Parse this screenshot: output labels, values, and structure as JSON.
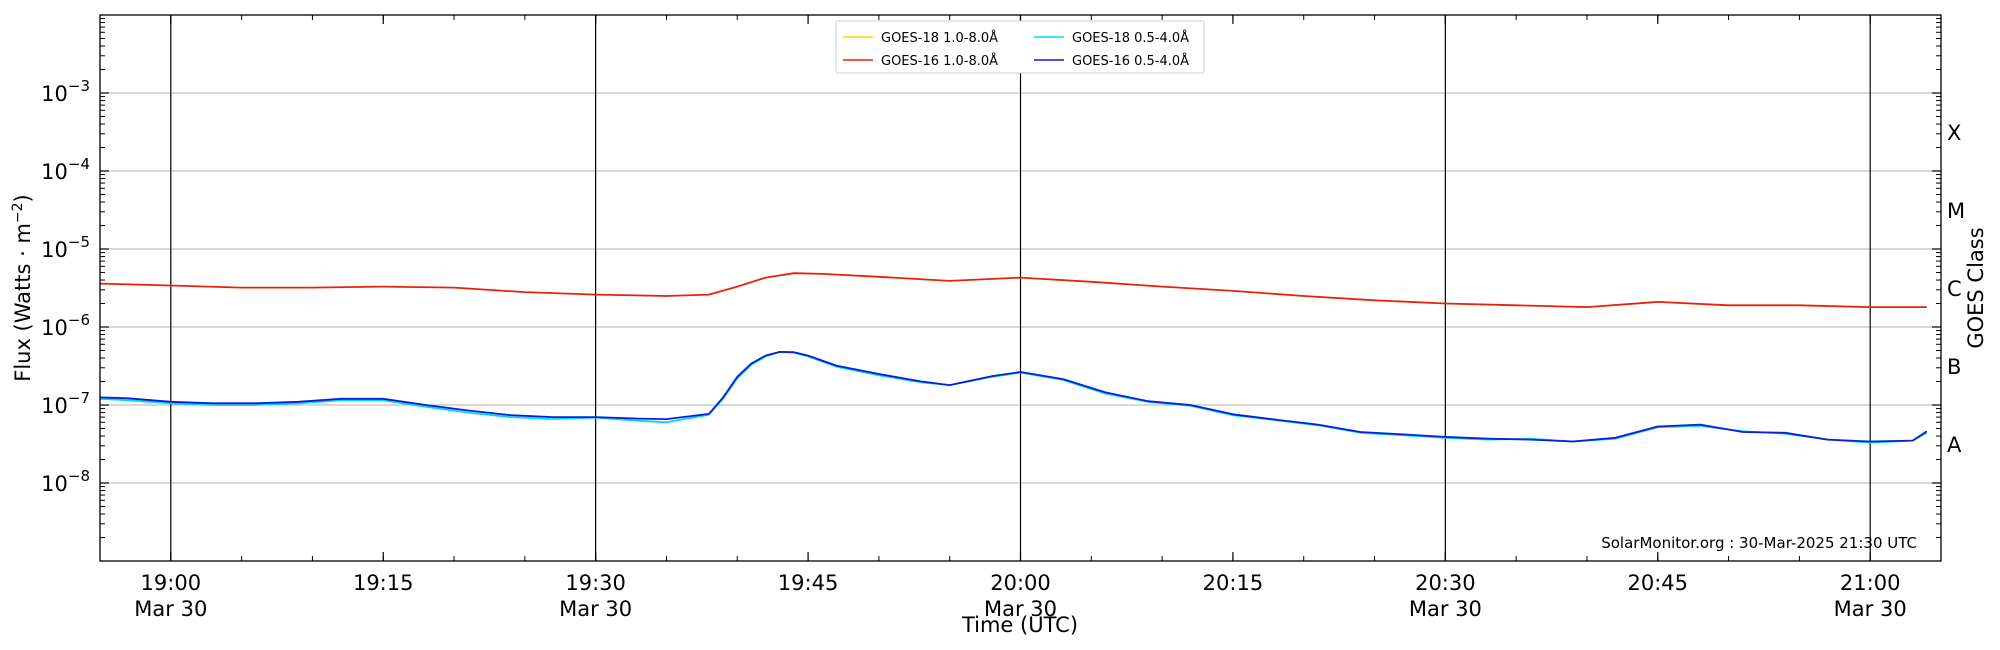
{
  "chart_data": {
    "type": "line",
    "xlabel": "Time (UTC)",
    "ylabel_main": "Flux (Watts · m",
    "ylabel_exp": "−2",
    "ylabel_close": ")",
    "right_label": "GOES Class",
    "credit": "SolarMonitor.org : 30-Mar-2025 21:30 UTC",
    "xlim": [
      "18:55",
      "21:05"
    ],
    "ylim_log10": [
      -9,
      -2
    ],
    "y_scale": "log",
    "grid": "horizontal",
    "legend_position": "top-center",
    "x_ticks": [
      {
        "time": "19:00",
        "label": "19:00",
        "date": "Mar 30",
        "major": true
      },
      {
        "time": "19:15",
        "label": "19:15",
        "date": "",
        "major": false
      },
      {
        "time": "19:30",
        "label": "19:30",
        "date": "Mar 30",
        "major": true
      },
      {
        "time": "19:45",
        "label": "19:45",
        "date": "",
        "major": false
      },
      {
        "time": "20:00",
        "label": "20:00",
        "date": "Mar 30",
        "major": true
      },
      {
        "time": "20:15",
        "label": "20:15",
        "date": "",
        "major": false
      },
      {
        "time": "20:30",
        "label": "20:30",
        "date": "Mar 30",
        "major": true
      },
      {
        "time": "20:45",
        "label": "20:45",
        "date": "",
        "major": false
      },
      {
        "time": "21:00",
        "label": "21:00",
        "date": "Mar 30",
        "major": true
      }
    ],
    "y_ticks": [
      {
        "exp": -3,
        "base": "10",
        "sup": "−3"
      },
      {
        "exp": -4,
        "base": "10",
        "sup": "−4"
      },
      {
        "exp": -5,
        "base": "10",
        "sup": "−5"
      },
      {
        "exp": -6,
        "base": "10",
        "sup": "−6"
      },
      {
        "exp": -7,
        "base": "10",
        "sup": "−7"
      },
      {
        "exp": -8,
        "base": "10",
        "sup": "−8"
      }
    ],
    "goes_classes": [
      {
        "label": "X",
        "exp": -3.5
      },
      {
        "label": "M",
        "exp": -4.5
      },
      {
        "label": "C",
        "exp": -5.5
      },
      {
        "label": "B",
        "exp": -6.5
      },
      {
        "label": "A",
        "exp": -7.5
      }
    ],
    "series": [
      {
        "name": "GOES-18 1.0-8.0Å",
        "color": "#FFD700",
        "visible_in_plot": false,
        "x": [
          "18:55",
          "19:00",
          "19:05",
          "19:10",
          "19:15",
          "19:20",
          "19:25",
          "19:30",
          "19:35",
          "19:38",
          "19:40",
          "19:42",
          "19:44",
          "19:46",
          "19:50",
          "19:55",
          "20:00",
          "20:05",
          "20:10",
          "20:15",
          "20:20",
          "20:25",
          "20:30",
          "20:35",
          "20:40",
          "20:45",
          "20:50",
          "20:55",
          "21:00",
          "21:04"
        ],
        "y": [
          3.6e-06,
          3.4e-06,
          3.2e-06,
          3.2e-06,
          3.3e-06,
          3.2e-06,
          2.8e-06,
          2.6e-06,
          2.5e-06,
          2.6e-06,
          3.3e-06,
          4.3e-06,
          4.9e-06,
          4.8e-06,
          4.4e-06,
          3.9e-06,
          4.3e-06,
          3.8e-06,
          3.3e-06,
          2.9e-06,
          2.5e-06,
          2.2e-06,
          2e-06,
          1.9e-06,
          1.8e-06,
          2.1e-06,
          1.9e-06,
          1.9e-06,
          1.8e-06,
          1.8e-06
        ]
      },
      {
        "name": "GOES-16 1.0-8.0Å",
        "color": "#E8220A",
        "visible_in_plot": true,
        "x": [
          "18:55",
          "19:00",
          "19:05",
          "19:10",
          "19:15",
          "19:20",
          "19:25",
          "19:30",
          "19:35",
          "19:38",
          "19:40",
          "19:42",
          "19:44",
          "19:46",
          "19:50",
          "19:55",
          "20:00",
          "20:05",
          "20:10",
          "20:15",
          "20:20",
          "20:25",
          "20:30",
          "20:35",
          "20:40",
          "20:45",
          "20:50",
          "20:55",
          "21:00",
          "21:04"
        ],
        "y": [
          3.6e-06,
          3.4e-06,
          3.2e-06,
          3.2e-06,
          3.3e-06,
          3.2e-06,
          2.8e-06,
          2.6e-06,
          2.5e-06,
          2.6e-06,
          3.3e-06,
          4.3e-06,
          4.9e-06,
          4.8e-06,
          4.4e-06,
          3.9e-06,
          4.3e-06,
          3.8e-06,
          3.3e-06,
          2.9e-06,
          2.5e-06,
          2.2e-06,
          2e-06,
          1.9e-06,
          1.8e-06,
          2.1e-06,
          1.9e-06,
          1.9e-06,
          1.8e-06,
          1.8e-06
        ]
      },
      {
        "name": "GOES-18 0.5-4.0Å",
        "color": "#00D8F0",
        "visible_in_plot": true,
        "x": [
          "18:55",
          "18:57",
          "19:00",
          "19:03",
          "19:06",
          "19:09",
          "19:12",
          "19:15",
          "19:18",
          "19:21",
          "19:24",
          "19:27",
          "19:30",
          "19:33",
          "19:35",
          "19:38",
          "19:39",
          "19:40",
          "19:41",
          "19:42",
          "19:43",
          "19:44",
          "19:45",
          "19:47",
          "19:50",
          "19:53",
          "19:55",
          "19:58",
          "20:00",
          "20:03",
          "20:06",
          "20:09",
          "20:12",
          "20:15",
          "20:18",
          "20:21",
          "20:24",
          "20:27",
          "20:30",
          "20:33",
          "20:36",
          "20:39",
          "20:42",
          "20:45",
          "20:48",
          "20:51",
          "20:54",
          "20:57",
          "21:00",
          "21:03",
          "21:04"
        ],
        "y": [
          1.2e-07,
          1.15e-07,
          1.05e-07,
          1e-07,
          1e-07,
          1.05e-07,
          1.15e-07,
          1.15e-07,
          9.5e-08,
          8e-08,
          7e-08,
          6.6e-08,
          6.9e-08,
          6.3e-08,
          6e-08,
          7.5e-08,
          1.2e-07,
          2.2e-07,
          3.3e-07,
          4.2e-07,
          4.8e-07,
          4.7e-07,
          4.2e-07,
          3.1e-07,
          2.4e-07,
          1.95e-07,
          1.8e-07,
          2.3e-07,
          2.6e-07,
          2.1e-07,
          1.4e-07,
          1.1e-07,
          9.8e-08,
          7.4e-08,
          6.4e-08,
          5.5e-08,
          4.4e-08,
          4.1e-08,
          3.8e-08,
          3.6e-08,
          3.7e-08,
          3.4e-08,
          3.7e-08,
          5.2e-08,
          5.4e-08,
          4.6e-08,
          4.3e-08,
          3.6e-08,
          3.3e-08,
          3.5e-08,
          4.4e-08
        ]
      },
      {
        "name": "GOES-16 0.5-4.0Å",
        "color": "#0A1ED8",
        "visible_in_plot": true,
        "x": [
          "18:55",
          "18:57",
          "19:00",
          "19:03",
          "19:06",
          "19:09",
          "19:12",
          "19:15",
          "19:18",
          "19:21",
          "19:24",
          "19:27",
          "19:30",
          "19:33",
          "19:35",
          "19:38",
          "19:39",
          "19:40",
          "19:41",
          "19:42",
          "19:43",
          "19:44",
          "19:45",
          "19:47",
          "19:50",
          "19:53",
          "19:55",
          "19:58",
          "20:00",
          "20:03",
          "20:06",
          "20:09",
          "20:12",
          "20:15",
          "20:18",
          "20:21",
          "20:24",
          "20:27",
          "20:30",
          "20:33",
          "20:36",
          "20:39",
          "20:42",
          "20:45",
          "20:48",
          "20:51",
          "20:54",
          "20:57",
          "21:00",
          "21:03",
          "21:04"
        ],
        "y": [
          1.25e-07,
          1.22e-07,
          1.1e-07,
          1.05e-07,
          1.05e-07,
          1.1e-07,
          1.2e-07,
          1.2e-07,
          1e-07,
          8.5e-08,
          7.4e-08,
          7e-08,
          7e-08,
          6.7e-08,
          6.6e-08,
          7.7e-08,
          1.25e-07,
          2.3e-07,
          3.4e-07,
          4.3e-07,
          4.8e-07,
          4.75e-07,
          4.3e-07,
          3.2e-07,
          2.5e-07,
          2e-07,
          1.8e-07,
          2.35e-07,
          2.65e-07,
          2.15e-07,
          1.45e-07,
          1.12e-07,
          1e-07,
          7.6e-08,
          6.5e-08,
          5.6e-08,
          4.5e-08,
          4.2e-08,
          3.9e-08,
          3.7e-08,
          3.6e-08,
          3.4e-08,
          3.8e-08,
          5.3e-08,
          5.6e-08,
          4.5e-08,
          4.4e-08,
          3.6e-08,
          3.4e-08,
          3.5e-08,
          4.6e-08
        ]
      }
    ]
  }
}
